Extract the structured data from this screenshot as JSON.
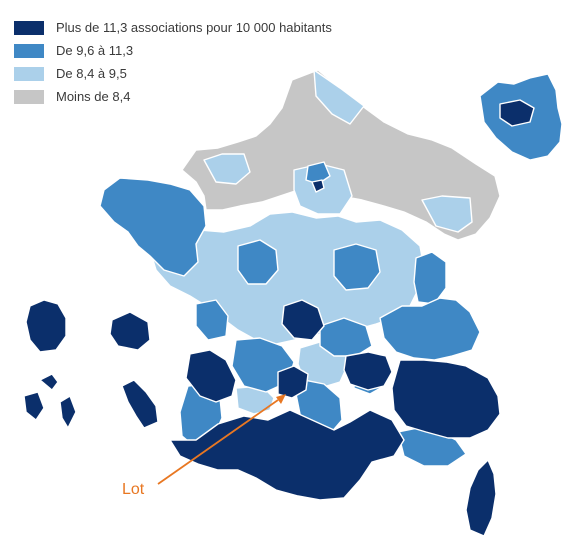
{
  "legend": {
    "items": [
      {
        "label": "Plus de 11,3 associations pour 10 000 habitants",
        "color": "#0b2f6b"
      },
      {
        "label": "De 9,6 à 11,3",
        "color": "#3f88c5"
      },
      {
        "label": "De 8,4 à 9,5",
        "color": "#abd0ea"
      },
      {
        "label": "Moins de 8,4",
        "color": "#c6c6c6"
      }
    ]
  },
  "callout": {
    "label": "Lot",
    "color": "#e87722"
  },
  "colors": {
    "border": "#ffffff"
  }
}
